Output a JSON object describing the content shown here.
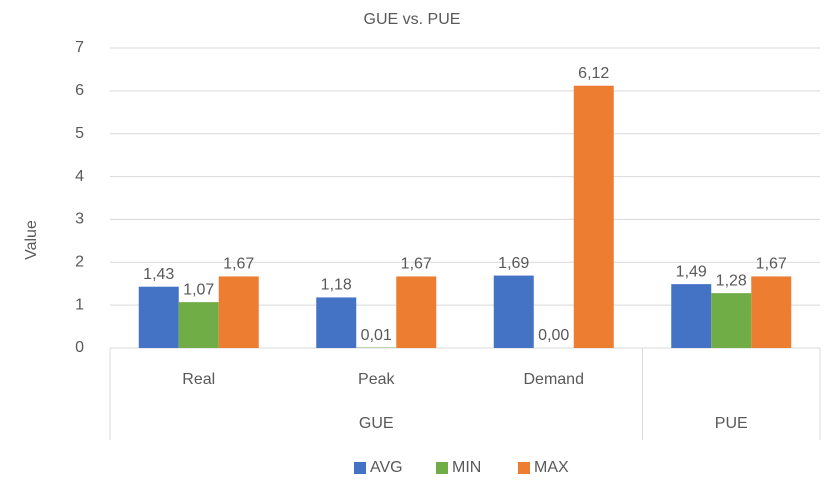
{
  "chart_data": {
    "type": "bar",
    "title": "GUE vs. PUE",
    "y_label": "Value",
    "categories": [
      "Real",
      "Peak",
      "Demand",
      null
    ],
    "category_groups": [
      "GUE",
      "GUE",
      "GUE",
      "PUE"
    ],
    "series": [
      {
        "name": "AVG",
        "color": "#4472c4",
        "values": [
          1.43,
          1.18,
          1.69,
          1.49
        ],
        "value_labels": [
          "1,43",
          "1,18",
          "1,69",
          "1,49"
        ]
      },
      {
        "name": "MIN",
        "color": "#70ad47",
        "values": [
          1.07,
          0.01,
          0.0,
          1.28
        ],
        "value_labels": [
          "1,07",
          "0,01",
          "0,00",
          "1,28"
        ]
      },
      {
        "name": "MAX",
        "color": "#ed7d31",
        "values": [
          1.67,
          1.67,
          6.12,
          1.67
        ],
        "value_labels": [
          "1,67",
          "1,67",
          "6,12",
          "1,67"
        ]
      }
    ],
    "ylim": [
      0,
      7
    ],
    "yticks": [
      0,
      1,
      2,
      3,
      4,
      5,
      6,
      7
    ],
    "grid": true,
    "legend": "bottom"
  }
}
